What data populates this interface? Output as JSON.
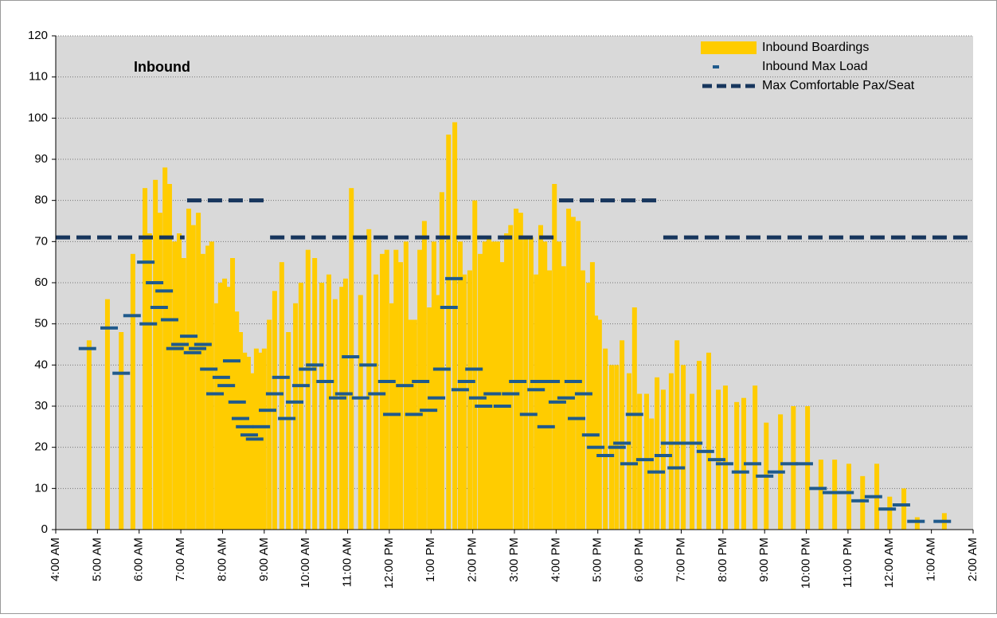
{
  "chart_data": {
    "type": "bar",
    "title": "Inbound",
    "xlim": [
      4,
      26
    ],
    "xticks": [
      {
        "value": 4,
        "label": "4:00 AM"
      },
      {
        "value": 5,
        "label": "5:00 AM"
      },
      {
        "value": 6,
        "label": "6:00 AM"
      },
      {
        "value": 7,
        "label": "7:00 AM"
      },
      {
        "value": 8,
        "label": "8:00 AM"
      },
      {
        "value": 9,
        "label": "9:00 AM"
      },
      {
        "value": 10,
        "label": "10:00 AM"
      },
      {
        "value": 11,
        "label": "11:00 AM"
      },
      {
        "value": 12,
        "label": "12:00 PM"
      },
      {
        "value": 13,
        "label": "1:00 PM"
      },
      {
        "value": 14,
        "label": "2:00 PM"
      },
      {
        "value": 15,
        "label": "3:00 PM"
      },
      {
        "value": 16,
        "label": "4:00 PM"
      },
      {
        "value": 17,
        "label": "5:00 PM"
      },
      {
        "value": 18,
        "label": "6:00 PM"
      },
      {
        "value": 19,
        "label": "7:00 PM"
      },
      {
        "value": 20,
        "label": "8:00 PM"
      },
      {
        "value": 21,
        "label": "9:00 PM"
      },
      {
        "value": 22,
        "label": "10:00 PM"
      },
      {
        "value": 23,
        "label": "11:00 PM"
      },
      {
        "value": 24,
        "label": "12:00 AM"
      },
      {
        "value": 25,
        "label": "1:00 AM"
      },
      {
        "value": 26,
        "label": "2:00 AM"
      }
    ],
    "ylim": [
      0,
      120
    ],
    "yticks": [
      0,
      10,
      20,
      30,
      40,
      50,
      60,
      70,
      80,
      90,
      100,
      110,
      120
    ],
    "grid": true,
    "series": [
      {
        "name": "Inbound Boardings",
        "type": "bar",
        "color": "#ffcc00",
        "x": [
          4.8,
          5.24,
          5.57,
          5.85,
          6.14,
          6.25,
          6.39,
          6.5,
          6.62,
          6.73,
          6.85,
          6.96,
          7.07,
          7.19,
          7.3,
          7.42,
          7.53,
          7.65,
          7.74,
          7.86,
          7.95,
          8.05,
          8.14,
          8.24,
          8.34,
          8.43,
          8.53,
          8.62,
          8.72,
          8.81,
          8.91,
          9.0,
          9.12,
          9.25,
          9.42,
          9.58,
          9.75,
          9.88,
          10.05,
          10.21,
          10.38,
          10.55,
          10.7,
          10.86,
          10.95,
          11.09,
          11.31,
          11.51,
          11.68,
          11.83,
          11.94,
          12.06,
          12.16,
          12.27,
          12.4,
          12.5,
          12.61,
          12.73,
          12.84,
          12.96,
          13.07,
          13.17,
          13.26,
          13.42,
          13.57,
          13.7,
          13.8,
          13.93,
          14.05,
          14.18,
          14.29,
          14.39,
          14.5,
          14.6,
          14.71,
          14.81,
          14.91,
          15.04,
          15.15,
          15.27,
          15.4,
          15.52,
          15.63,
          15.73,
          15.84,
          15.96,
          16.07,
          16.18,
          16.3,
          16.41,
          16.53,
          16.64,
          16.78,
          16.87,
          16.95,
          17.04,
          17.18,
          17.33,
          17.45,
          17.58,
          17.75,
          17.88,
          18.0,
          18.17,
          18.29,
          18.42,
          18.57,
          18.76,
          18.9,
          19.05,
          19.26,
          19.43,
          19.66,
          19.89,
          20.06,
          20.33,
          20.5,
          20.77,
          21.04,
          21.38,
          21.69,
          22.03,
          22.35,
          22.68,
          23.02,
          23.35,
          23.69,
          24.0,
          24.34,
          24.66,
          25.31
        ],
        "values": [
          46,
          56,
          48,
          67,
          83,
          72,
          85,
          77,
          88,
          84,
          70,
          72,
          66,
          78,
          74,
          77,
          67,
          69,
          70,
          55,
          60,
          61,
          59,
          66,
          53,
          48,
          43,
          42,
          38,
          44,
          43,
          44,
          51,
          58,
          65,
          48,
          55,
          60,
          68,
          66,
          60,
          62,
          56,
          59,
          61,
          83,
          57,
          73,
          62,
          67,
          68,
          55,
          68,
          65,
          70,
          51,
          51,
          68,
          75,
          54,
          70,
          57,
          82,
          96,
          99,
          70,
          62,
          63,
          80,
          67,
          70,
          71,
          70,
          70,
          65,
          72,
          74,
          78,
          77,
          71,
          71,
          62,
          74,
          70,
          63,
          84,
          70,
          64,
          78,
          76,
          75,
          63,
          60,
          65,
          52,
          51,
          44,
          40,
          40,
          46,
          38,
          54,
          33,
          33,
          27,
          37,
          34,
          38,
          46,
          40,
          33,
          41,
          43,
          34,
          35,
          31,
          32,
          35,
          26,
          28,
          30,
          30,
          17,
          17,
          16,
          13,
          16,
          8,
          10,
          3,
          4
        ]
      },
      {
        "name": "Inbound Max Load",
        "type": "dash",
        "color": "#1f5a8c",
        "x": [
          4.76,
          5.28,
          5.57,
          5.83,
          6.16,
          6.22,
          6.37,
          6.48,
          6.6,
          6.73,
          6.86,
          6.98,
          7.19,
          7.28,
          7.4,
          7.53,
          7.67,
          7.82,
          7.97,
          8.09,
          8.22,
          8.35,
          8.43,
          8.53,
          8.64,
          8.77,
          8.93,
          9.08,
          9.25,
          9.4,
          9.54,
          9.73,
          9.88,
          10.04,
          10.21,
          10.46,
          10.76,
          10.91,
          11.07,
          11.31,
          11.49,
          11.7,
          11.94,
          12.06,
          12.37,
          12.59,
          12.75,
          12.94,
          13.13,
          13.26,
          13.43,
          13.55,
          13.7,
          13.85,
          14.03,
          14.12,
          14.26,
          14.47,
          14.71,
          14.91,
          15.08,
          15.34,
          15.52,
          15.59,
          15.76,
          15.88,
          16.03,
          16.24,
          16.41,
          16.49,
          16.66,
          16.83,
          16.95,
          17.18,
          17.46,
          17.58,
          17.75,
          17.88,
          18.13,
          18.4,
          18.57,
          18.72,
          18.88,
          19.07,
          19.3,
          19.58,
          19.85,
          20.04,
          20.42,
          20.71,
          21.0,
          21.28,
          21.59,
          21.95,
          22.28,
          22.6,
          22.93,
          23.29,
          23.61,
          23.94,
          24.28,
          24.63,
          25.26
        ],
        "values": [
          44,
          49,
          38,
          52,
          65,
          50,
          60,
          54,
          58,
          51,
          44,
          45,
          47,
          43,
          44,
          45,
          39,
          33,
          37,
          35,
          41,
          31,
          27,
          25,
          23,
          22,
          25,
          29,
          33,
          37,
          27,
          31,
          35,
          39,
          40,
          36,
          32,
          33,
          42,
          32,
          40,
          33,
          36,
          28,
          35,
          28,
          36,
          29,
          32,
          39,
          54,
          61,
          34,
          36,
          39,
          32,
          30,
          33,
          30,
          33,
          36,
          28,
          34,
          36,
          25,
          36,
          31,
          32,
          36,
          27,
          33,
          23,
          20,
          18,
          20,
          21,
          16,
          28,
          17,
          14,
          18,
          21,
          15,
          21,
          21,
          19,
          17,
          16,
          14,
          16,
          13,
          14,
          16,
          16,
          10,
          9,
          9,
          7,
          8,
          5,
          6,
          2,
          2
        ]
      },
      {
        "name": "Max Comfortable Pax/Seat",
        "type": "segments",
        "color": "#17365d",
        "segments": [
          {
            "start": 4,
            "end": 7.09,
            "value": 71
          },
          {
            "start": 7.15,
            "end": 9.06,
            "value": 80
          },
          {
            "start": 9.14,
            "end": 15.97,
            "value": 71
          },
          {
            "start": 16.07,
            "end": 18.42,
            "value": 80
          },
          {
            "start": 18.57,
            "end": 26,
            "value": 71
          }
        ]
      }
    ]
  }
}
